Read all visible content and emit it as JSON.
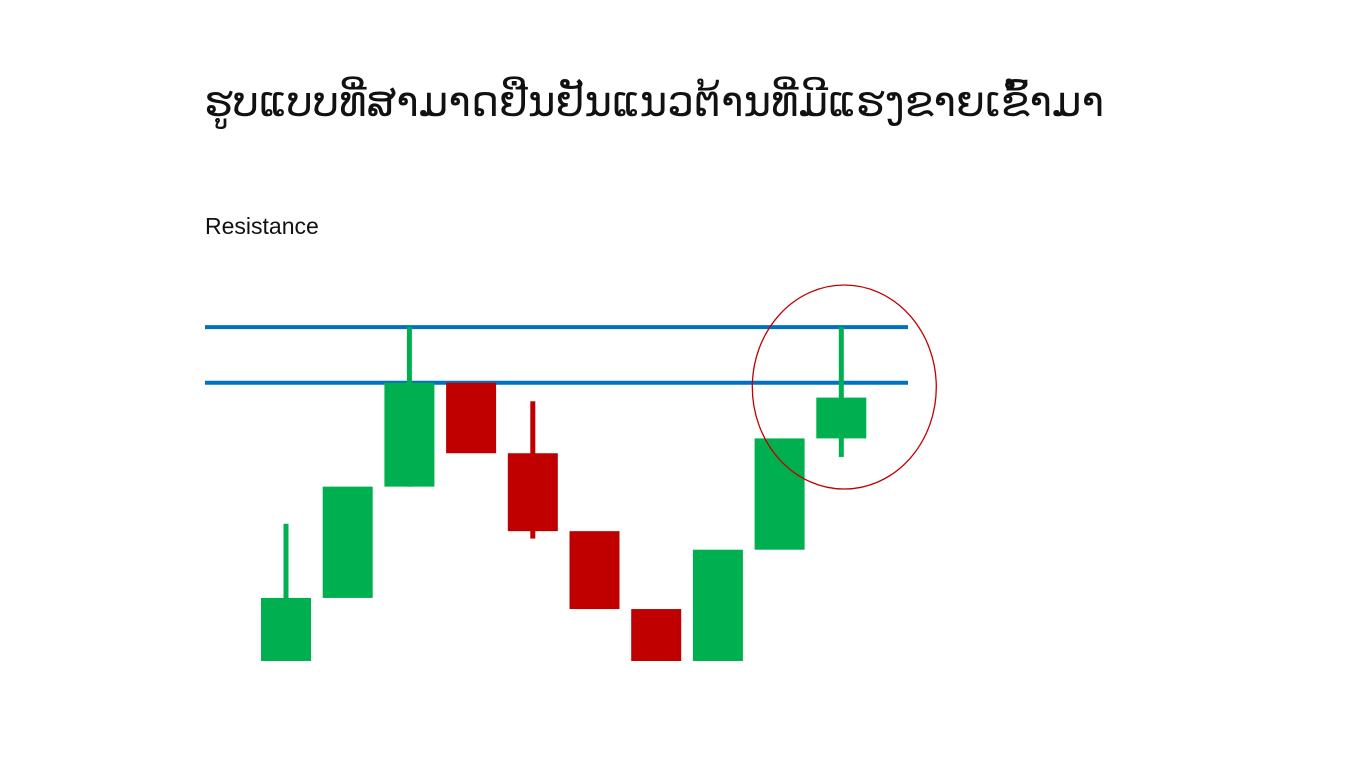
{
  "title": "ຮູບແບບທີ່ສາມາດຢືນຢັນແນວຕ້ານທີ່ມີແຮງຂາຍເຂົ້າມາ",
  "resistance_label": "Resistance",
  "colors": {
    "bullish": "#00b050",
    "bearish": "#c00000",
    "resistance_line": "#0070c0",
    "highlight_circle": "#c00000"
  },
  "chart_data": {
    "type": "candlestick",
    "price_range": [
      0,
      100
    ],
    "resistance_zone": {
      "upper": 90,
      "lower": 75
    },
    "candles": [
      {
        "direction": "up",
        "open": 0,
        "close": 17,
        "high": 37,
        "low": 0
      },
      {
        "direction": "up",
        "open": 17,
        "close": 47,
        "high": 47,
        "low": 17
      },
      {
        "direction": "up",
        "open": 47,
        "close": 75,
        "high": 90,
        "low": 47
      },
      {
        "direction": "down",
        "open": 75,
        "close": 56,
        "high": 75,
        "low": 56
      },
      {
        "direction": "down",
        "open": 56,
        "close": 35,
        "high": 70,
        "low": 33
      },
      {
        "direction": "down",
        "open": 35,
        "close": 14,
        "high": 35,
        "low": 14
      },
      {
        "direction": "down",
        "open": 14,
        "close": 0,
        "high": 14,
        "low": 0
      },
      {
        "direction": "up",
        "open": 0,
        "close": 30,
        "high": 30,
        "low": 0
      },
      {
        "direction": "up",
        "open": 30,
        "close": 60,
        "high": 60,
        "low": 30
      },
      {
        "direction": "up",
        "open": 60,
        "close": 71,
        "high": 90,
        "low": 55,
        "highlighted": true
      }
    ]
  }
}
